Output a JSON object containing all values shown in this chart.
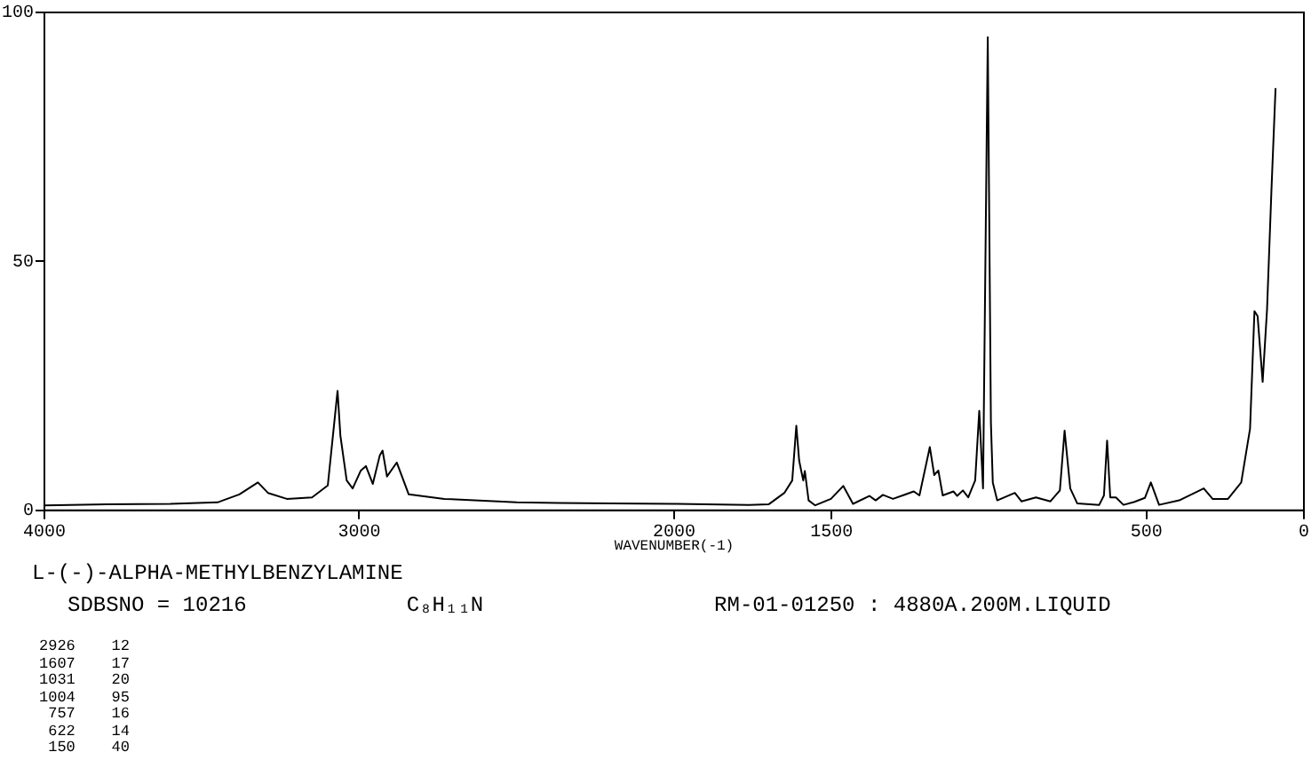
{
  "chart_data": {
    "type": "line",
    "title": "L-(-)-ALPHA-METHYLBENZYLAMINE",
    "xlabel": "WAVENUMBER(-1)",
    "xlim": [
      4000,
      0
    ],
    "xticks": [
      4000,
      3000,
      2000,
      1500,
      500,
      0
    ],
    "ylim": [
      0,
      100
    ],
    "yticks": [
      0,
      50,
      100
    ],
    "grid": false,
    "legend": false,
    "marker": "none",
    "line_style": "solid",
    "annotations": [
      "SDBSNO = 10216",
      "C₈H₁₁N",
      "RM-01-01250 : 4880A.200M.LIQUID",
      "2926    12",
      "1607    17",
      "1031    20",
      "1004    95",
      " 757    16",
      " 622    14",
      " 150    40"
    ],
    "series": [
      {
        "color": "#000000",
        "x": [
          4000,
          3800,
          3600,
          3450,
          3381,
          3322,
          3290,
          3230,
          3150,
          3100,
          3069,
          3060,
          3040,
          3021,
          2995,
          2979,
          2957,
          2935,
          2926,
          2912,
          2881,
          2843,
          2730,
          2500,
          2368,
          2200,
          2000,
          1763,
          1700,
          1650,
          1625,
          1612,
          1603,
          1596,
          1590,
          1585,
          1573,
          1552,
          1502,
          1463,
          1432,
          1380,
          1360,
          1337,
          1305,
          1239,
          1221,
          1188,
          1174,
          1161,
          1147,
          1113,
          1101,
          1083,
          1066,
          1044,
          1031,
          1019,
          1004,
          994,
          988,
          974,
          918,
          897,
          851,
          805,
          775,
          760,
          742,
          720,
          650,
          635,
          625,
          615,
          597,
          573,
          538,
          505,
          486,
          460,
          396,
          318,
          290,
          241,
          199,
          171,
          157,
          147,
          131,
          117,
          103,
          90
        ],
        "values": [
          1,
          1.2,
          1.3,
          1.6,
          3.2,
          5.6,
          3.5,
          2.3,
          2.6,
          5,
          24,
          15,
          6,
          4.4,
          8,
          8.9,
          5.3,
          11,
          12,
          6.8,
          9.6,
          3.2,
          2.3,
          1.6,
          1.5,
          1.4,
          1.3,
          1.1,
          1.2,
          3.5,
          6,
          17,
          10,
          7.8,
          6,
          7.9,
          2,
          1,
          2.3,
          4.9,
          1.3,
          2.9,
          2,
          3.1,
          2.3,
          3.8,
          3,
          12.7,
          7.1,
          8,
          3,
          3.8,
          2.9,
          4,
          2.6,
          6,
          20,
          4.4,
          95,
          17.6,
          5.6,
          2,
          3.5,
          1.8,
          2.6,
          1.8,
          4,
          16,
          4.4,
          1.4,
          1.1,
          3,
          14,
          2.6,
          2.6,
          1.1,
          1.7,
          2.5,
          5.6,
          1.1,
          2,
          4.4,
          2.3,
          2.3,
          5.6,
          16.4,
          40,
          39,
          25.8,
          40.4,
          64.4,
          84.8
        ]
      }
    ]
  }
}
